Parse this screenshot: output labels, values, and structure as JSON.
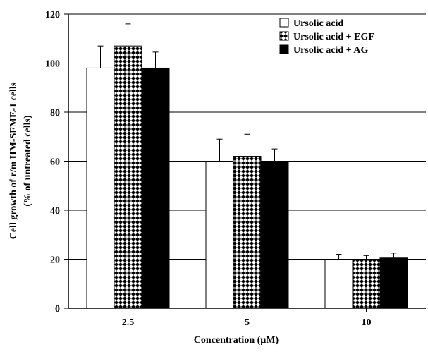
{
  "chart_data": {
    "type": "bar",
    "categories": [
      "2.5",
      "5",
      "10"
    ],
    "series": [
      {
        "name": "Ursolic acid",
        "values": [
          98,
          60,
          20
        ],
        "errors": [
          9,
          9,
          2
        ],
        "fill": "white"
      },
      {
        "name": "Ursolic acid + EGF",
        "values": [
          107,
          62,
          20
        ],
        "errors": [
          9,
          9,
          1.5
        ],
        "fill": "checker"
      },
      {
        "name": "Ursolic acid + AG",
        "values": [
          98,
          60,
          20.5
        ],
        "errors": [
          6.5,
          5,
          2
        ],
        "fill": "black"
      }
    ],
    "ylabel_line1": "Cell growth of r/m HM-SFME-1 cells",
    "ylabel_line2": "(% of untreated cells)",
    "xlabel": "Concentration (µM)",
    "ylim": [
      0,
      120
    ],
    "yticks": [
      0,
      20,
      40,
      60,
      80,
      100,
      120
    ],
    "grid": true,
    "legend_position": "top-right"
  }
}
